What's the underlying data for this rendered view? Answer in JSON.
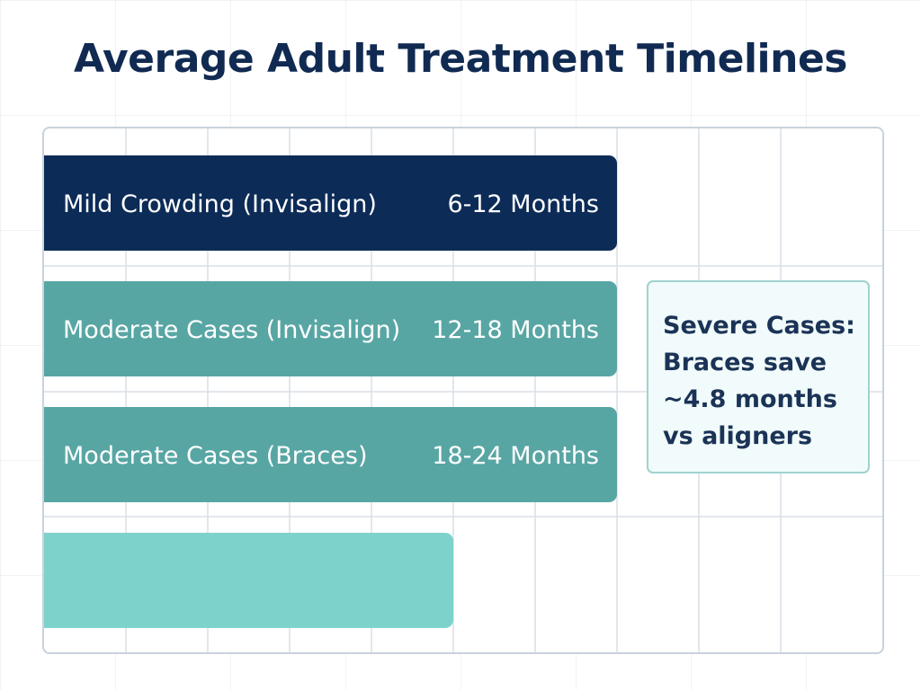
{
  "title": "Average Adult Treatment Timelines",
  "colors": {
    "dark_navy": "#0c2b57",
    "teal_medium": "#58a6a4",
    "teal_light": "#7dd3cb",
    "title_text": "#102a52",
    "callout_border": "#9fd2cf",
    "callout_fill": "#f2fbfb",
    "grid": "#d9dfe6"
  },
  "callout": {
    "lines": [
      "Severe Cases:",
      "Braces save",
      "~4.8 months",
      "vs aligners"
    ]
  },
  "chart_data": {
    "type": "bar",
    "orientation": "horizontal",
    "title": "Average Adult Treatment Timelines",
    "xlabel": "",
    "ylabel": "",
    "grid": true,
    "bars": [
      {
        "category": "Mild Crowding (Invisalign)",
        "value_label": "6-12 Months",
        "length": 7,
        "color": "#0c2b57"
      },
      {
        "category": "Moderate Cases (Invisalign)",
        "value_label": "12-18 Months",
        "length": 7,
        "color": "#58a6a4"
      },
      {
        "category": "Moderate Cases (Braces)",
        "value_label": "18-24 Months",
        "length": 7,
        "color": "#58a6a4"
      },
      {
        "category": "",
        "value_label": "",
        "length": 5,
        "color": "#7dd3cb"
      }
    ],
    "xlim": [
      0,
      10
    ]
  }
}
